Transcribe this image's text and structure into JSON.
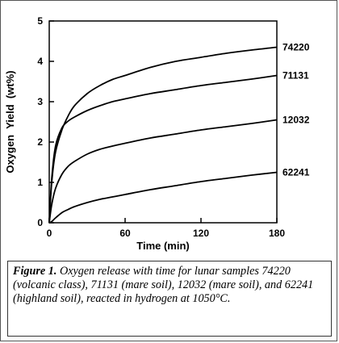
{
  "figure": {
    "caption_label": "Figure 1.",
    "caption_text": " Oxygen release with time for lunar samples 74220 (volcanic class), 71131 (mare soil), 12032 (mare soil), and 62241 (highland soil), reacted in hydrogen at 1050°C."
  },
  "chart_data": {
    "type": "line",
    "xlabel": "Time (min)",
    "ylabel": "Oxygen  Yield  (wt%)",
    "xlim": [
      0,
      180
    ],
    "ylim": [
      0,
      5
    ],
    "xticks": [
      0,
      60,
      120,
      180
    ],
    "yticks": [
      0,
      1,
      2,
      3,
      4,
      5
    ],
    "grid": false,
    "legend": "inline labels at right end of each curve",
    "series": [
      {
        "name": "74220",
        "x": [
          0,
          2,
          5,
          10,
          15,
          20,
          30,
          40,
          50,
          60,
          80,
          100,
          120,
          140,
          160,
          180
        ],
        "y": [
          0,
          1.0,
          1.75,
          2.3,
          2.65,
          2.9,
          3.2,
          3.4,
          3.55,
          3.65,
          3.85,
          4.0,
          4.1,
          4.2,
          4.28,
          4.35
        ]
      },
      {
        "name": "71131",
        "x": [
          0,
          2,
          5,
          10,
          15,
          20,
          30,
          40,
          50,
          60,
          80,
          100,
          120,
          140,
          160,
          180
        ],
        "y": [
          0,
          1.1,
          1.9,
          2.35,
          2.52,
          2.62,
          2.78,
          2.9,
          3.0,
          3.07,
          3.2,
          3.3,
          3.4,
          3.48,
          3.56,
          3.65
        ]
      },
      {
        "name": "12032",
        "x": [
          0,
          2,
          5,
          10,
          15,
          20,
          30,
          40,
          50,
          60,
          80,
          100,
          120,
          140,
          160,
          180
        ],
        "y": [
          0,
          0.45,
          0.85,
          1.2,
          1.4,
          1.52,
          1.7,
          1.82,
          1.9,
          1.97,
          2.1,
          2.2,
          2.3,
          2.38,
          2.46,
          2.55
        ]
      },
      {
        "name": "62241",
        "x": [
          0,
          2,
          5,
          10,
          15,
          20,
          30,
          40,
          50,
          60,
          80,
          100,
          120,
          140,
          160,
          180
        ],
        "y": [
          0,
          0.03,
          0.12,
          0.25,
          0.33,
          0.4,
          0.5,
          0.58,
          0.64,
          0.7,
          0.82,
          0.92,
          1.02,
          1.1,
          1.18,
          1.25
        ]
      }
    ]
  }
}
